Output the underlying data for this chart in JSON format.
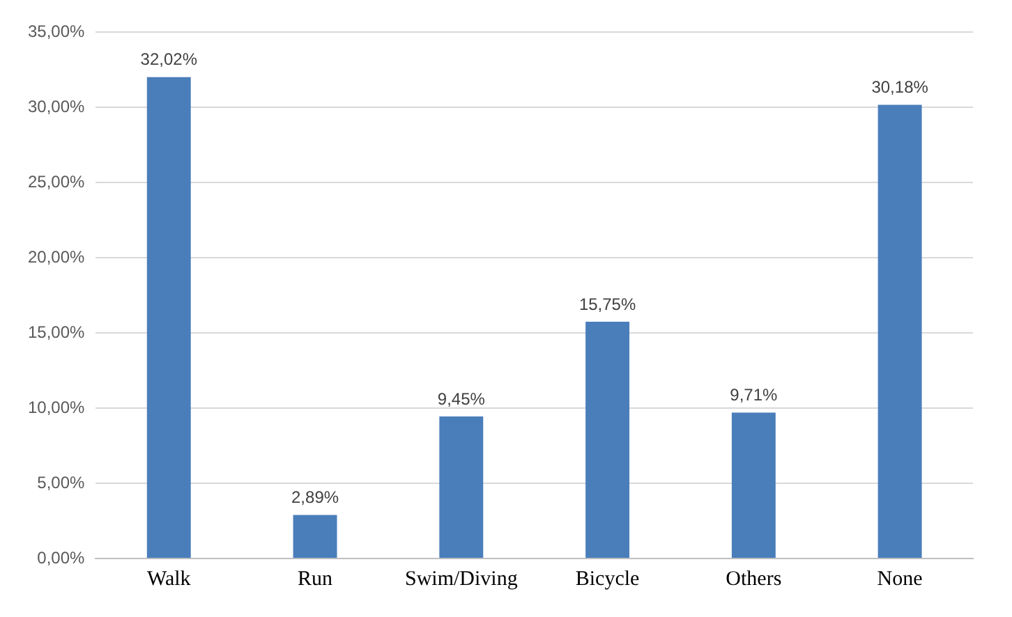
{
  "chart_data": {
    "type": "bar",
    "categories": [
      "Walk",
      "Run",
      "Swim/Diving",
      "Bicycle",
      "Others",
      "None"
    ],
    "values": [
      32.02,
      2.89,
      9.45,
      15.75,
      9.71,
      30.18
    ],
    "value_labels": [
      "32,02%",
      "2,89%",
      "9,45%",
      "15,75%",
      "9,71%",
      "30,18%"
    ],
    "color": "#4a7ebb",
    "ylim": [
      0,
      35
    ],
    "yticks": [
      {
        "value": 0,
        "label": "0,00%"
      },
      {
        "value": 5,
        "label": "5,00%"
      },
      {
        "value": 10,
        "label": "10,00%"
      },
      {
        "value": 15,
        "label": "15,00%"
      },
      {
        "value": 20,
        "label": "20,00%"
      },
      {
        "value": 25,
        "label": "25,00%"
      },
      {
        "value": 30,
        "label": "30,00%"
      },
      {
        "value": 35,
        "label": "35,00%"
      }
    ],
    "grid": "y",
    "legend": false
  }
}
